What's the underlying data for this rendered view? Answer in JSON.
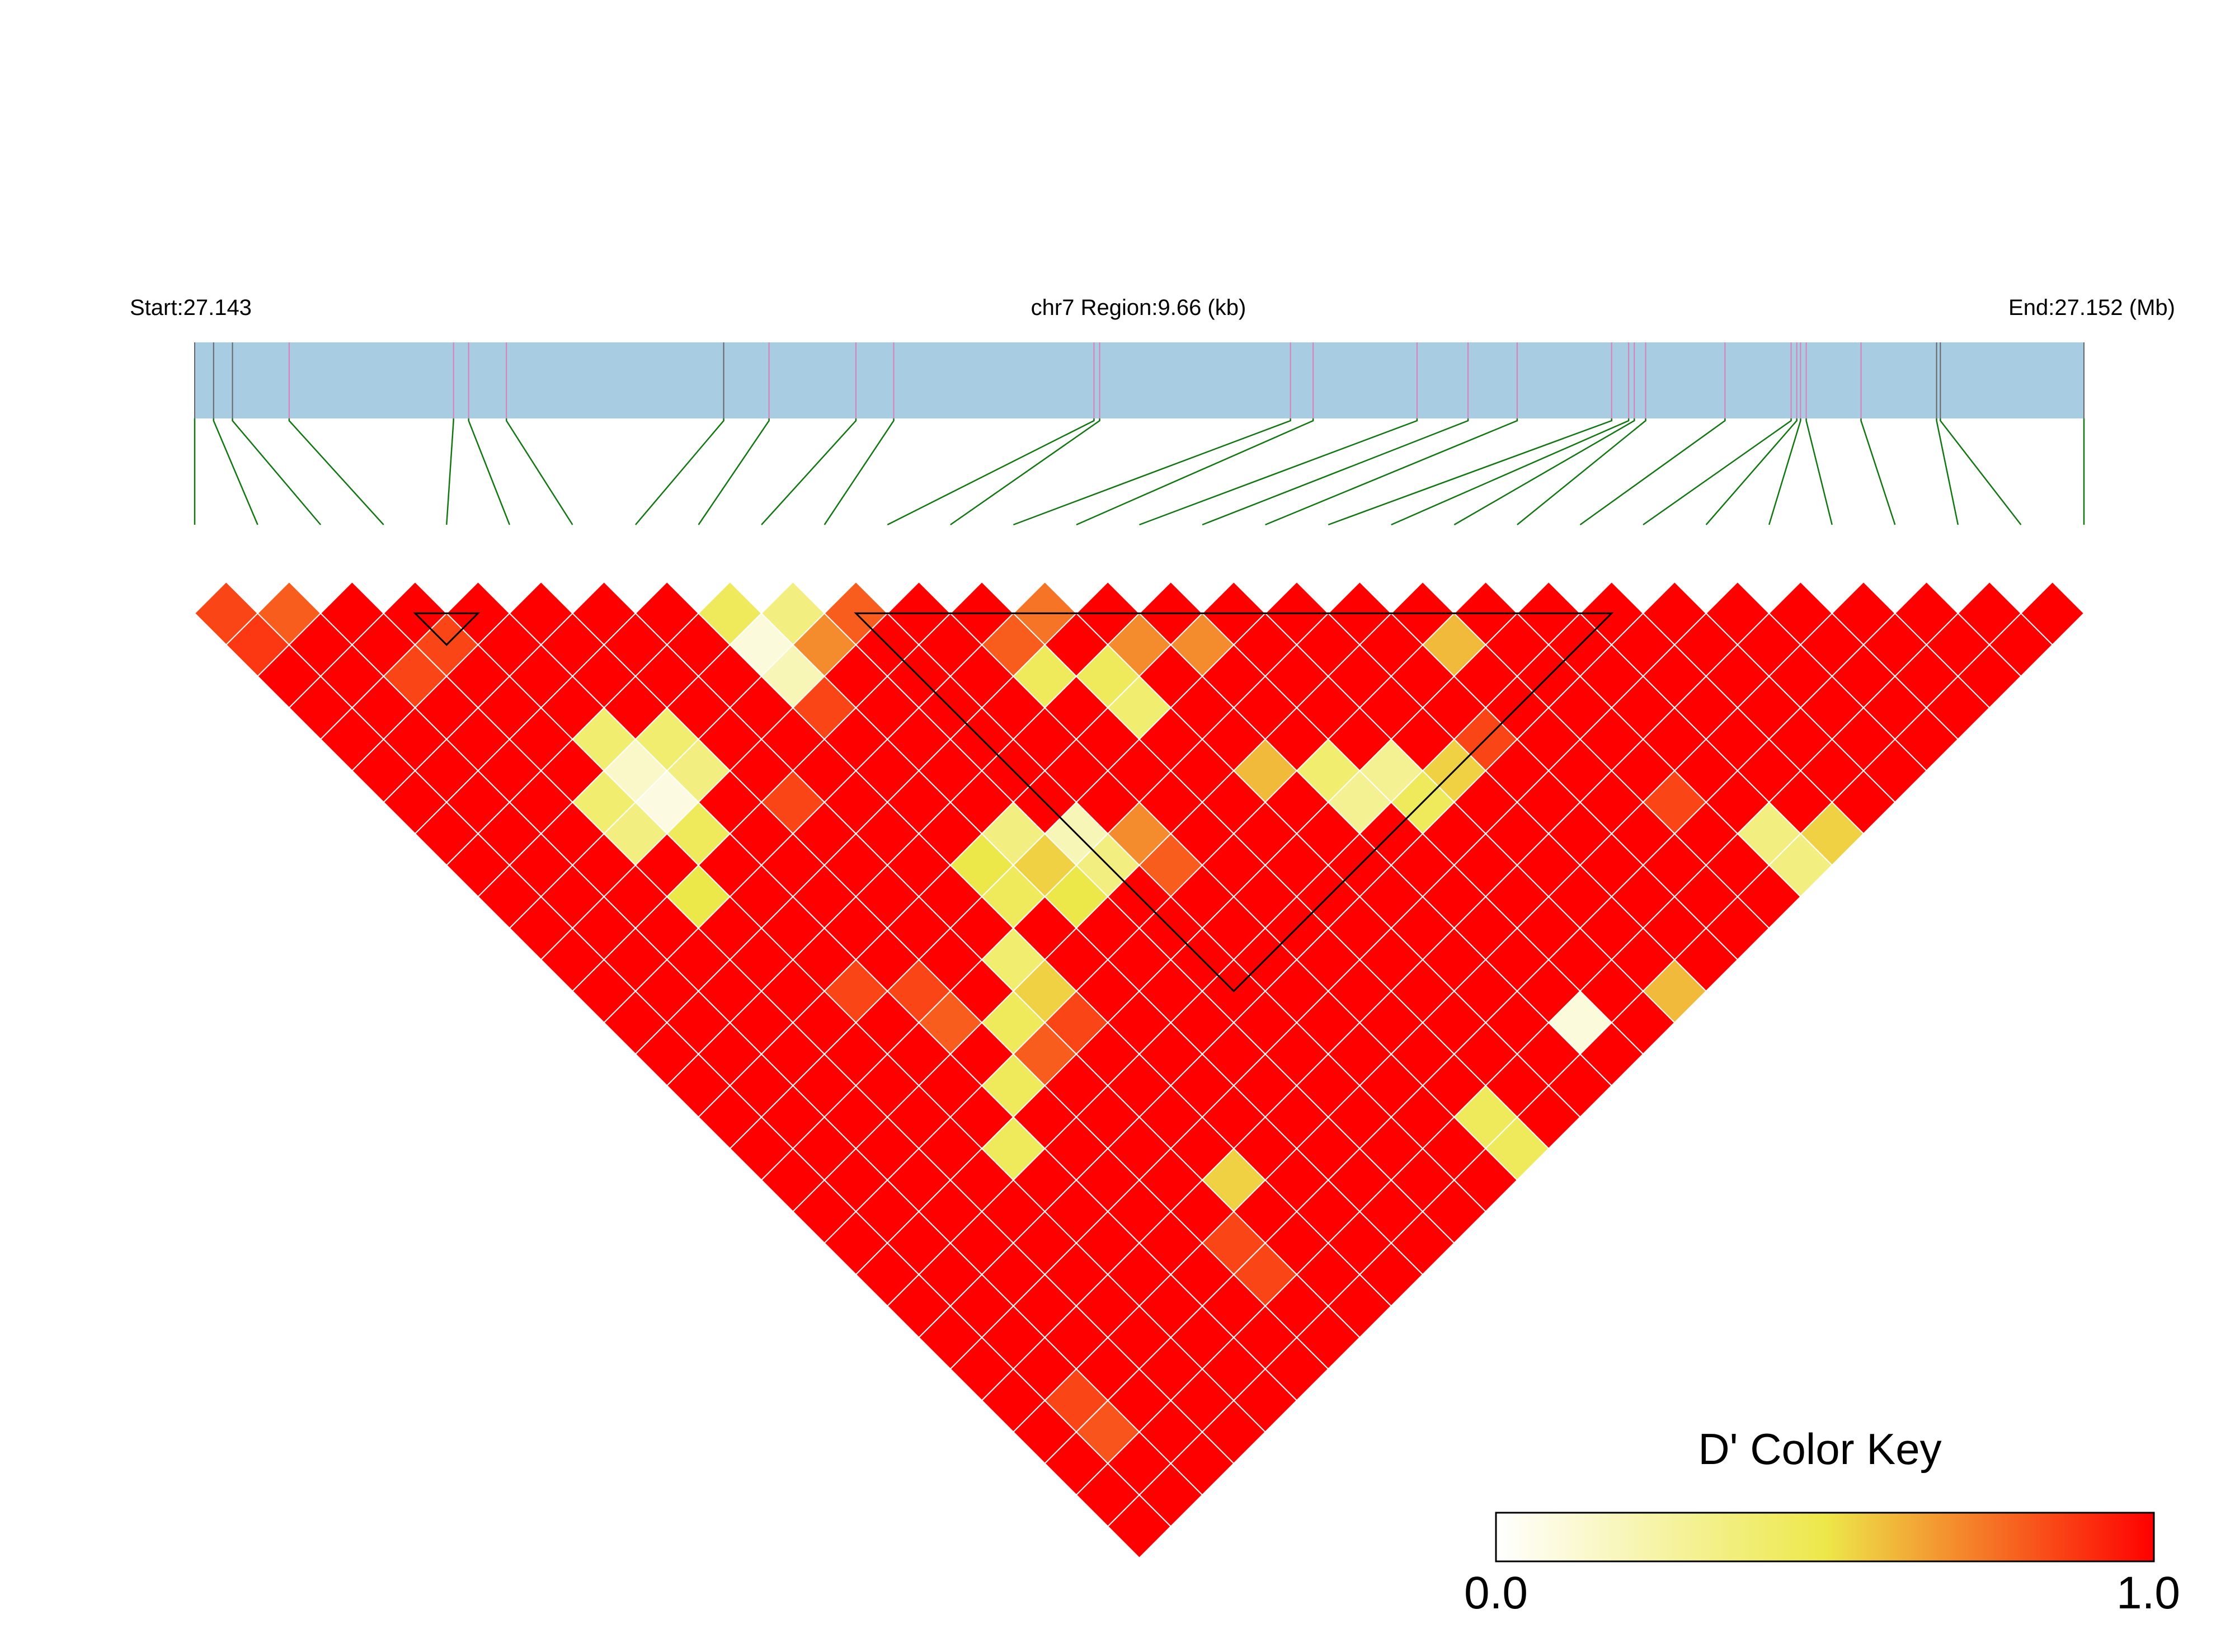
{
  "header": {
    "start_label": "Start:27.143",
    "region_label": "chr7 Region:9.66 (kb)",
    "end_label": "End:27.152 (Mb)"
  },
  "colors": {
    "gene_bar": "#a8cde2",
    "snp_tick_grey": "#666666",
    "snp_tick_pink": "#d97fb8",
    "connector": "#117711",
    "key_low": "#ffffff",
    "key_mid": "#ede84a",
    "key_high": "#ff0000"
  },
  "chart_data": {
    "type": "heatmap",
    "title": "",
    "metric": "D'",
    "snp_count": 31,
    "snp_positions": [
      0.0,
      0.01,
      0.02,
      0.05,
      0.137,
      0.145,
      0.165,
      0.28,
      0.304,
      0.35,
      0.37,
      0.476,
      0.479,
      0.58,
      0.592,
      0.647,
      0.674,
      0.7,
      0.75,
      0.759,
      0.762,
      0.768,
      0.81,
      0.845,
      0.848,
      0.85,
      0.853,
      0.882,
      0.922,
      0.924,
      1.0
    ],
    "snp_tick_styles": [
      "grey",
      "grey",
      "grey",
      "pink",
      "pink",
      "pink",
      "pink",
      "grey",
      "pink",
      "pink",
      "pink",
      "pink",
      "pink",
      "pink",
      "pink",
      "pink",
      "pink",
      "pink",
      "pink",
      "pink",
      "pink",
      "pink",
      "pink",
      "pink",
      "pink",
      "pink",
      "pink",
      "pink",
      "grey",
      "grey",
      "grey"
    ],
    "base_value": 1.0,
    "cells": [
      {
        "i": 0,
        "j": 1,
        "v": 0.85
      },
      {
        "i": 1,
        "j": 2,
        "v": 0.8
      },
      {
        "i": 0,
        "j": 2,
        "v": 0.88
      },
      {
        "i": 3,
        "j": 5,
        "v": 0.85
      },
      {
        "i": 2,
        "j": 5,
        "v": 0.85
      },
      {
        "i": 8,
        "j": 9,
        "v": 0.45
      },
      {
        "i": 8,
        "j": 10,
        "v": 0.1
      },
      {
        "i": 9,
        "j": 10,
        "v": 0.35
      },
      {
        "i": 8,
        "j": 11,
        "v": 0.2
      },
      {
        "i": 9,
        "j": 11,
        "v": 0.7
      },
      {
        "i": 10,
        "j": 11,
        "v": 0.8
      },
      {
        "i": 4,
        "j": 9,
        "v": 0.4
      },
      {
        "i": 4,
        "j": 10,
        "v": 0.15
      },
      {
        "i": 5,
        "j": 10,
        "v": 0.4
      },
      {
        "i": 3,
        "j": 10,
        "v": 0.4
      },
      {
        "i": 4,
        "j": 11,
        "v": 0.08
      },
      {
        "i": 5,
        "j": 11,
        "v": 0.35
      },
      {
        "i": 3,
        "j": 11,
        "v": 0.35
      },
      {
        "i": 4,
        "j": 12,
        "v": 0.45
      },
      {
        "i": 3,
        "j": 13,
        "v": 0.5
      },
      {
        "i": 8,
        "j": 12,
        "v": 0.85
      },
      {
        "i": 6,
        "j": 13,
        "v": 0.85
      },
      {
        "i": 12,
        "j": 15,
        "v": 0.45
      },
      {
        "i": 13,
        "j": 14,
        "v": 0.75
      },
      {
        "i": 12,
        "j": 14,
        "v": 0.8
      },
      {
        "i": 13,
        "j": 16,
        "v": 0.45
      },
      {
        "i": 13,
        "j": 17,
        "v": 0.4
      },
      {
        "i": 14,
        "j": 16,
        "v": 0.7
      },
      {
        "i": 15,
        "j": 17,
        "v": 0.7
      },
      {
        "i": 19,
        "j": 21,
        "v": 0.6
      },
      {
        "i": 8,
        "j": 17,
        "v": 0.5
      },
      {
        "i": 9,
        "j": 17,
        "v": 0.35
      },
      {
        "i": 9,
        "j": 18,
        "v": 0.55
      },
      {
        "i": 8,
        "j": 18,
        "v": 0.45
      },
      {
        "i": 10,
        "j": 18,
        "v": 0.2
      },
      {
        "i": 10,
        "j": 19,
        "v": 0.35
      },
      {
        "i": 9,
        "j": 19,
        "v": 0.5
      },
      {
        "i": 11,
        "j": 19,
        "v": 0.7
      },
      {
        "i": 11,
        "j": 20,
        "v": 0.8
      },
      {
        "i": 7,
        "j": 19,
        "v": 0.4
      },
      {
        "i": 7,
        "j": 20,
        "v": 0.55
      },
      {
        "i": 6,
        "j": 20,
        "v": 0.45
      },
      {
        "i": 6,
        "j": 21,
        "v": 0.8
      },
      {
        "i": 7,
        "j": 21,
        "v": 0.85
      },
      {
        "i": 4,
        "j": 17,
        "v": 0.85
      },
      {
        "i": 5,
        "j": 18,
        "v": 0.85
      },
      {
        "i": 5,
        "j": 19,
        "v": 0.8
      },
      {
        "i": 5,
        "j": 21,
        "v": 0.45
      },
      {
        "i": 4,
        "j": 22,
        "v": 0.45
      },
      {
        "i": 14,
        "j": 20,
        "v": 0.6
      },
      {
        "i": 15,
        "j": 21,
        "v": 0.4
      },
      {
        "i": 15,
        "j": 22,
        "v": 0.3
      },
      {
        "i": 16,
        "j": 22,
        "v": 0.3
      },
      {
        "i": 16,
        "j": 23,
        "v": 0.45
      },
      {
        "i": 17,
        "j": 23,
        "v": 0.55
      },
      {
        "i": 18,
        "j": 23,
        "v": 0.85
      },
      {
        "i": 7,
        "j": 26,
        "v": 0.55
      },
      {
        "i": 6,
        "j": 27,
        "v": 0.85
      },
      {
        "i": 6,
        "j": 28,
        "v": 0.85
      },
      {
        "i": 12,
        "j": 29,
        "v": 0.45
      },
      {
        "i": 12,
        "j": 30,
        "v": 0.45
      },
      {
        "i": 17,
        "j": 30,
        "v": 0.6
      },
      {
        "i": 15,
        "j": 29,
        "v": 0.1
      },
      {
        "i": 21,
        "j": 29,
        "v": 0.35
      },
      {
        "i": 21,
        "j": 30,
        "v": 0.35
      },
      {
        "i": 22,
        "j": 30,
        "v": 0.55
      },
      {
        "i": 20,
        "j": 27,
        "v": 0.85
      },
      {
        "i": 1,
        "j": 27,
        "v": 0.85
      },
      {
        "i": 1,
        "j": 28,
        "v": 0.82
      }
    ],
    "blocks": [
      [
        3,
        5
      ],
      [
        10,
        23
      ],
      [
        25,
        26
      ],
      [
        28,
        29
      ]
    ],
    "color_key": {
      "title": "D' Color Key",
      "min_label": "0.0",
      "max_label": "1.0",
      "range": [
        0,
        1
      ]
    }
  }
}
